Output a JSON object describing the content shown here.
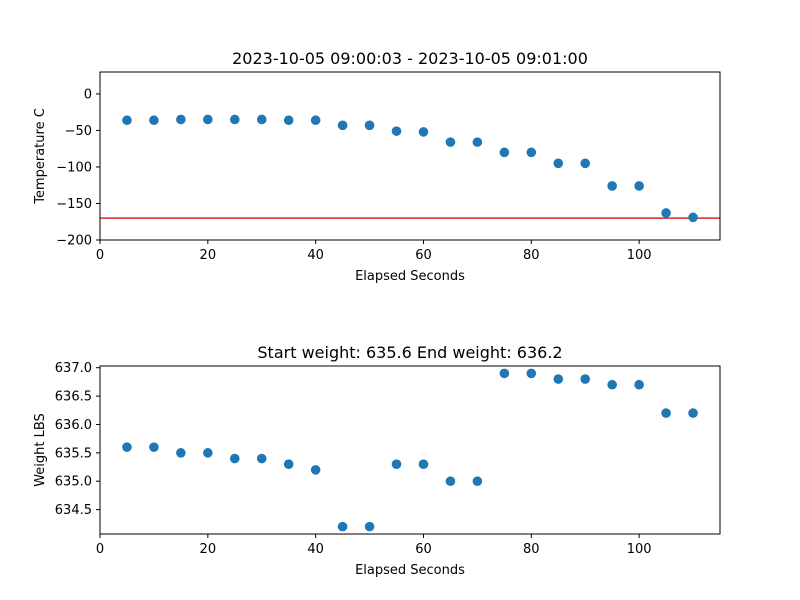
{
  "chart_data": [
    {
      "type": "scatter",
      "title": "2023-10-05 09:00:03 - 2023-10-05 09:01:00",
      "xlabel": "Elapsed Seconds",
      "ylabel": "Temperature C",
      "xlim": [
        0,
        115
      ],
      "ylim": [
        -200,
        30
      ],
      "xticks": [
        0,
        20,
        40,
        60,
        80,
        100
      ],
      "yticks": [
        -200,
        -150,
        -100,
        -50,
        0
      ],
      "xtick_labels": [
        "0",
        "20",
        "40",
        "60",
        "80",
        "100"
      ],
      "ytick_labels": [
        "−200",
        "−150",
        "−100",
        "−50",
        "0"
      ],
      "marker_color": "#1f77b4",
      "reference_line": {
        "y": -170,
        "color": "#d62728"
      },
      "x": [
        5,
        10,
        15,
        20,
        25,
        30,
        35,
        40,
        45,
        50,
        55,
        60,
        65,
        70,
        75,
        80,
        85,
        90,
        95,
        100,
        105,
        110
      ],
      "y": [
        -36,
        -36,
        -35,
        -35,
        -35,
        -35,
        -36,
        -36,
        -43,
        -43,
        -51,
        -52,
        -66,
        -66,
        -80,
        -80,
        -95,
        -95,
        -126,
        -126,
        -163,
        -169
      ]
    },
    {
      "type": "scatter",
      "title": "Start weight: 635.6 End weight: 636.2",
      "xlabel": "Elapsed Seconds",
      "ylabel": "Weight LBS",
      "xlim": [
        0,
        115
      ],
      "ylim": [
        634.07,
        637.03
      ],
      "xticks": [
        0,
        20,
        40,
        60,
        80,
        100
      ],
      "yticks": [
        634.5,
        635.0,
        635.5,
        636.0,
        636.5,
        637.0
      ],
      "xtick_labels": [
        "0",
        "20",
        "40",
        "60",
        "80",
        "100"
      ],
      "ytick_labels": [
        "634.5",
        "635.0",
        "635.5",
        "636.0",
        "636.5",
        "637.0"
      ],
      "marker_color": "#1f77b4",
      "x": [
        5,
        10,
        15,
        20,
        25,
        30,
        35,
        40,
        45,
        50,
        55,
        60,
        65,
        70,
        75,
        80,
        85,
        90,
        95,
        100,
        105,
        110
      ],
      "y": [
        635.6,
        635.6,
        635.5,
        635.5,
        635.4,
        635.4,
        635.3,
        635.2,
        634.2,
        634.2,
        635.3,
        635.3,
        635.0,
        635.0,
        636.9,
        636.9,
        636.8,
        636.8,
        636.7,
        636.7,
        636.2,
        636.2
      ]
    }
  ]
}
